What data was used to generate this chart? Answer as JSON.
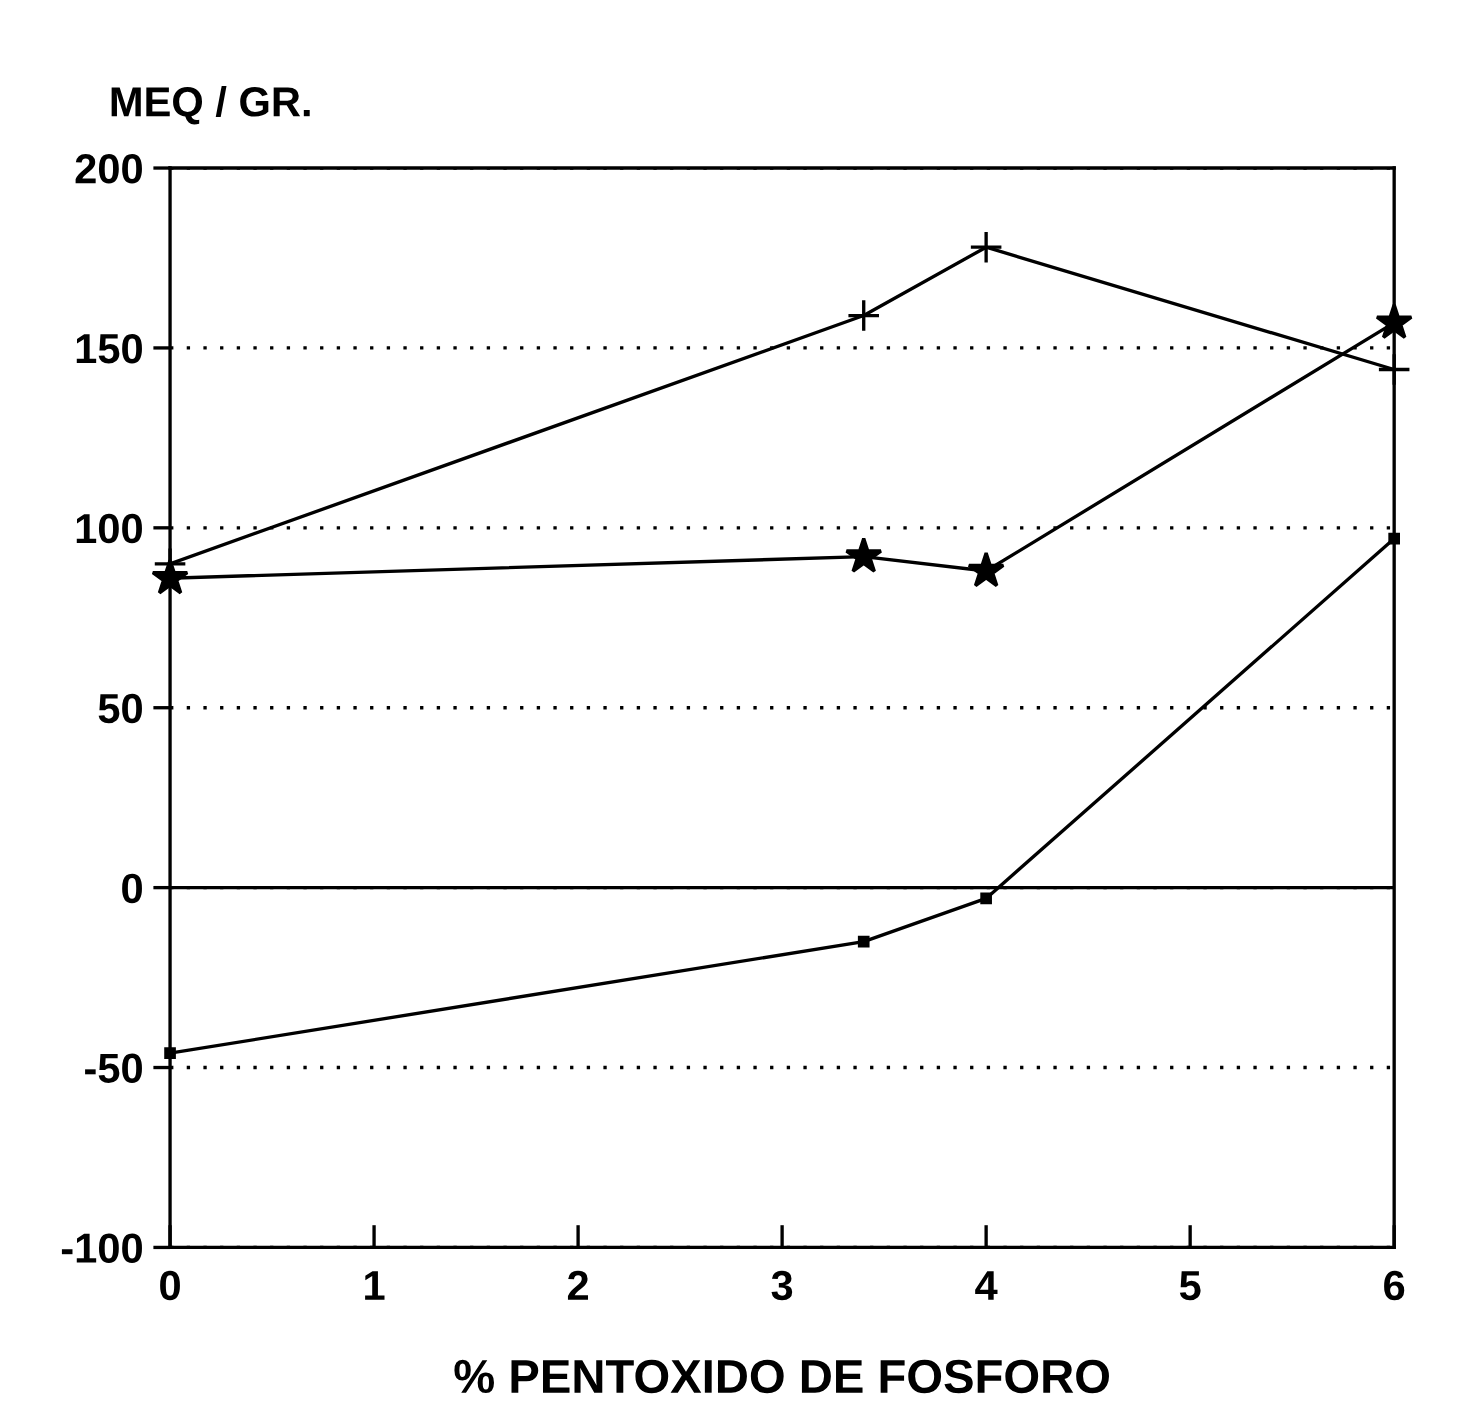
{
  "chart_data": {
    "type": "line",
    "ylabel": "MEQ / GR.",
    "xlabel": "% PENTOXIDO DE FOSFORO",
    "xlim": [
      0,
      6
    ],
    "xticks": [
      0,
      1,
      2,
      3,
      4,
      5,
      6
    ],
    "ylim": [
      -100,
      200
    ],
    "yticks": [
      -100,
      -50,
      0,
      50,
      100,
      150,
      200
    ],
    "grid": "y",
    "line_style": "solid",
    "ref_lines": [
      {
        "axis": "y",
        "value": 0,
        "color": "#000000",
        "line_style": "solid"
      }
    ],
    "series": [
      {
        "color": "#000000",
        "marker": "cross",
        "x": [
          0,
          3.4,
          4,
          6
        ],
        "values": [
          90,
          159,
          178,
          144
        ]
      },
      {
        "color": "#000000",
        "marker": "star",
        "x": [
          0,
          3.4,
          4,
          6
        ],
        "values": [
          86,
          92,
          88,
          157
        ]
      },
      {
        "color": "#000000",
        "marker": "square",
        "x": [
          0,
          3.4,
          4,
          6
        ],
        "values": [
          -46,
          -15,
          -3,
          97
        ]
      }
    ]
  }
}
